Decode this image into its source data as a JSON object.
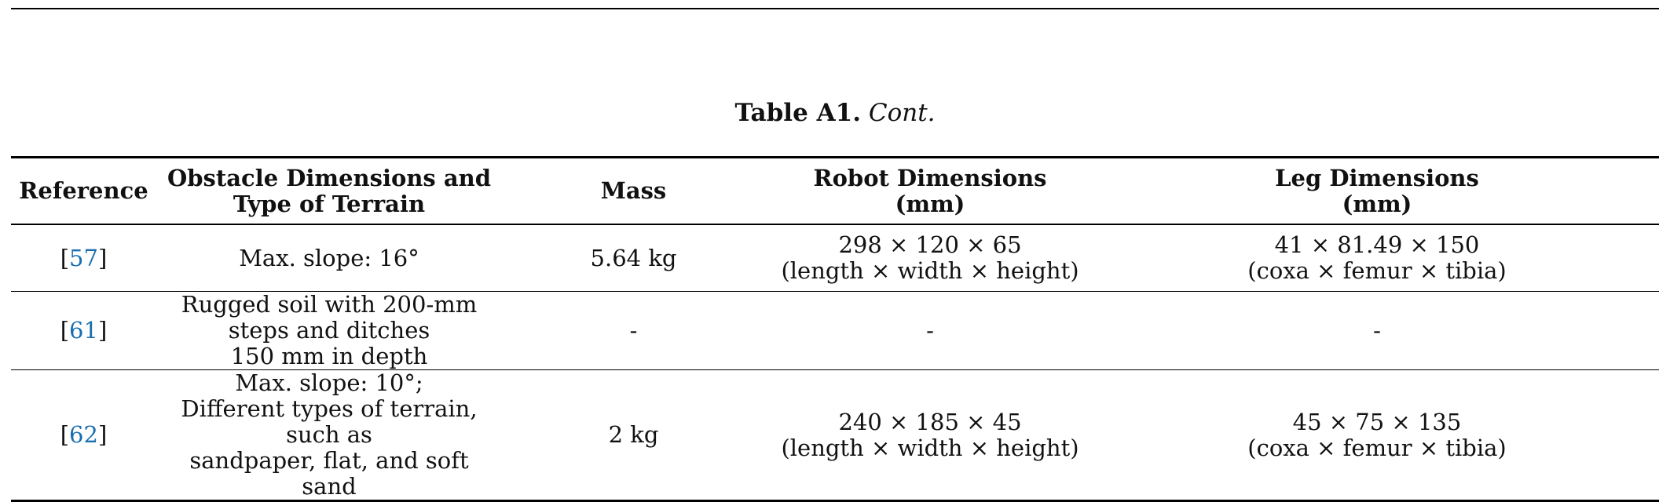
{
  "caption": {
    "label": "Table A1.",
    "cont": "Cont."
  },
  "columns": [
    [
      "Reference"
    ],
    [
      "Obstacle Dimensions and",
      "Type of Terrain"
    ],
    [
      "Mass"
    ],
    [
      "Robot Dimensions",
      "(mm)"
    ],
    [
      "Leg Dimensions",
      "(mm)"
    ]
  ],
  "rows": [
    {
      "ref": "57",
      "obstacle": [
        "Max. slope: 16°"
      ],
      "mass": "5.64 kg",
      "robot": [
        "298 × 120 × 65",
        "(length × width × height)"
      ],
      "leg": [
        "41 × 81.49 × 150",
        "(coxa × femur × tibia)"
      ]
    },
    {
      "ref": "61",
      "obstacle": [
        "Rugged soil with 200-mm steps and ditches",
        "150 mm in depth"
      ],
      "mass": "-",
      "robot": [
        "-"
      ],
      "leg": [
        "-"
      ]
    },
    {
      "ref": "62",
      "obstacle": [
        "Max. slope: 10°;",
        "Different types of terrain, such as",
        "sandpaper, flat, and soft sand"
      ],
      "mass": "2 kg",
      "robot": [
        "240 × 185 × 45",
        "(length × width × height)"
      ],
      "leg": [
        "45 × 75 × 135",
        "(coxa × femur × tibia)"
      ]
    }
  ]
}
